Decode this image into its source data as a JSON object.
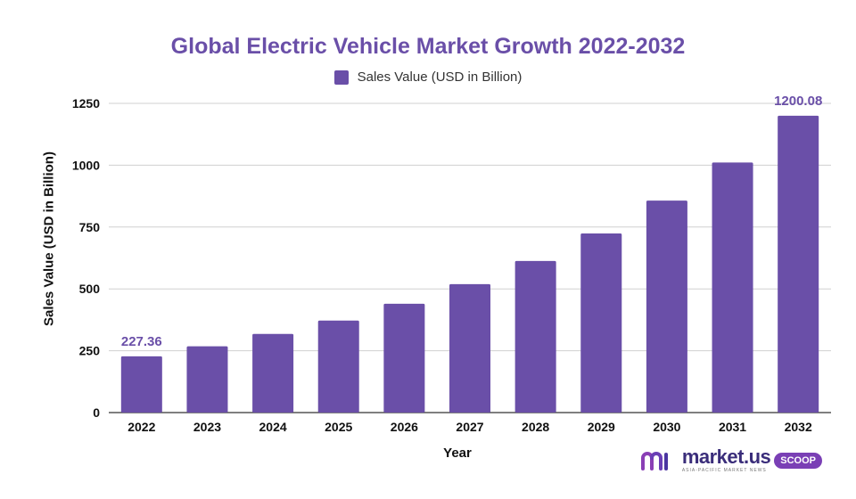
{
  "chart_data": {
    "type": "bar",
    "title": "Global Electric Vehicle Market Growth 2022-2032",
    "xlabel": "Year",
    "ylabel": "Sales Value (USD in Billion)",
    "categories": [
      "2022",
      "2023",
      "2024",
      "2025",
      "2026",
      "2027",
      "2028",
      "2029",
      "2030",
      "2031",
      "2032"
    ],
    "series": [
      {
        "name": "Sales Value (USD in Billion)",
        "values": [
          227.36,
          268,
          318,
          372,
          440,
          519,
          613,
          724,
          857,
          1011,
          1200.08
        ],
        "color": "#6a4fa8"
      }
    ],
    "data_labels": {
      "0": "227.36",
      "10": "1200.08"
    },
    "ylim": [
      0,
      1250
    ],
    "yticks": [
      0,
      250,
      500,
      750,
      1000,
      1250
    ],
    "grid": true,
    "legend_position": "top-center"
  },
  "brand": {
    "name": "market.us",
    "tagline": "ASIA-PACIFIC MARKET NEWS",
    "badge": "SCOOP"
  }
}
